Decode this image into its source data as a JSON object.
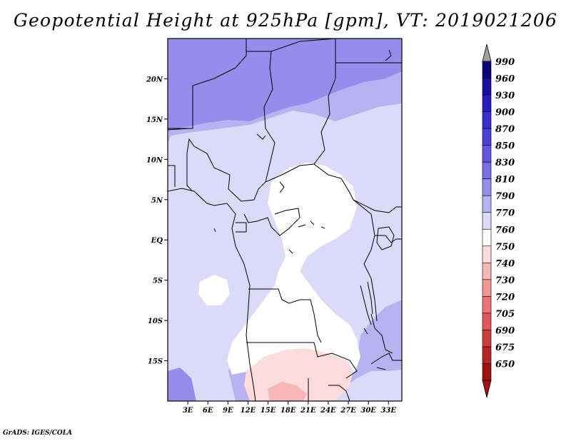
{
  "title": "Geopotential Height at 925hPa [gpm], VT: 2019021206",
  "footer": "GrADS: IGES/COLA",
  "map": {
    "variable": "Geopotential Height",
    "level_hpa": 925,
    "units": "gpm",
    "valid_time": "2019021206",
    "lon_range": [
      0,
      35
    ],
    "lat_range": [
      -20,
      25
    ],
    "x_ticks": [
      {
        "value": 3,
        "label": "3E"
      },
      {
        "value": 6,
        "label": "6E"
      },
      {
        "value": 9,
        "label": "9E"
      },
      {
        "value": 12,
        "label": "12E"
      },
      {
        "value": 15,
        "label": "15E"
      },
      {
        "value": 18,
        "label": "18E"
      },
      {
        "value": 21,
        "label": "21E"
      },
      {
        "value": 24,
        "label": "24E"
      },
      {
        "value": 27,
        "label": "27E"
      },
      {
        "value": 30,
        "label": "30E"
      },
      {
        "value": 33,
        "label": "33E"
      }
    ],
    "y_ticks": [
      {
        "value": 20,
        "label": "20N"
      },
      {
        "value": 15,
        "label": "15N"
      },
      {
        "value": 10,
        "label": "10N"
      },
      {
        "value": 5,
        "label": "5N"
      },
      {
        "value": 0,
        "label": "EQ"
      },
      {
        "value": -5,
        "label": "5S"
      },
      {
        "value": -10,
        "label": "10S"
      },
      {
        "value": -15,
        "label": "15S"
      }
    ]
  },
  "colorbar": {
    "levels": [
      "990",
      "960",
      "930",
      "900",
      "870",
      "850",
      "830",
      "810",
      "790",
      "770",
      "760",
      "750",
      "740",
      "730",
      "720",
      "705",
      "690",
      "675",
      "650"
    ],
    "colors": [
      "#0c047c",
      "#190ca0",
      "#2a1cc0",
      "#3a2ed0",
      "#4c40d8",
      "#6456e0",
      "#7a6ee6",
      "#958cec",
      "#b8b2f2",
      "#dcdaf8",
      "#ffffff",
      "#fcdcdc",
      "#f8b6b6",
      "#f29494",
      "#ec7474",
      "#e05858",
      "#d03c3c",
      "#b82424",
      "#a01010"
    ],
    "top_arrow_color": "#a0a0a0",
    "bottom_arrow_color": "#a01010"
  },
  "field_colors": {
    "c810": "#958cec",
    "c790": "#b8b2f2",
    "c770": "#dcdaf8",
    "c760": "#ffffff",
    "c750": "#fcdcdc",
    "c740": "#f8b6b6"
  }
}
